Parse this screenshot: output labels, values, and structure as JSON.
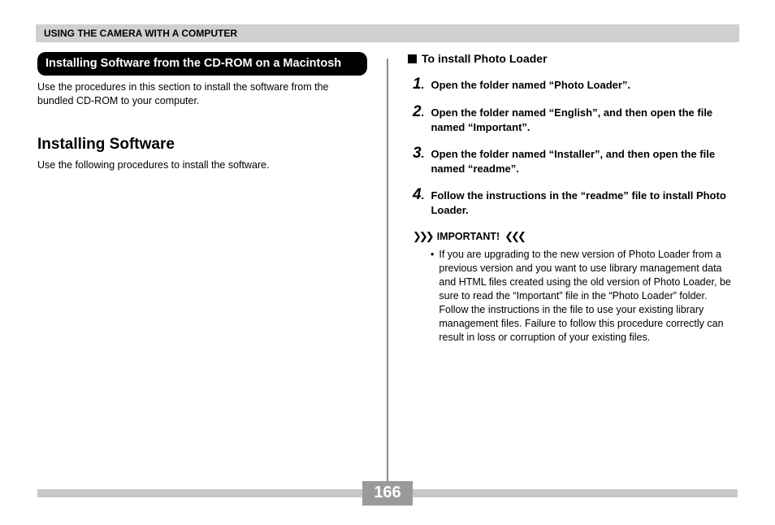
{
  "colors": {
    "header_bg": "#d0d0d0",
    "banner_bg": "#000000",
    "banner_fg": "#ffffff",
    "divider": "#8a8a8a",
    "page_bar_bg": "#c8c8c8",
    "page_num_bg": "#9a9a9a",
    "page_num_fg": "#ffffff",
    "text": "#000000"
  },
  "typography": {
    "body_font": "Arial, Helvetica, sans-serif",
    "body_size_pt": 9,
    "h2_size_pt": 14,
    "step_num_size_pt": 14,
    "step_text_size_pt": 10,
    "page_num_size_pt": 15
  },
  "header": {
    "title": "USING THE CAMERA WITH A COMPUTER"
  },
  "left": {
    "banner": "Installing Software from the CD-ROM on a Macintosh",
    "intro": "Use the procedures in this section to install the software from the bundled CD-ROM to your computer.",
    "heading": "Installing Software",
    "heading_sub": "Use the following procedures to install the software."
  },
  "right": {
    "subheading": "To install Photo Loader",
    "steps": [
      {
        "n": "1",
        "text": "Open the folder named “Photo Loader”."
      },
      {
        "n": "2",
        "text": "Open the folder named “English”, and then open the file named “Important”."
      },
      {
        "n": "3",
        "text": "Open the folder named “Installer”, and then open the file named “readme”."
      },
      {
        "n": "4",
        "text": "Follow the instructions in the “readme” file to install Photo Loader."
      }
    ],
    "important_label": "IMPORTANT!",
    "important_arrows_left": "❯❯❯",
    "important_arrows_right": "❮❮❮",
    "important_bullet": "If you are upgrading to the new version of Photo Loader from a previous version and you want to use library management data and HTML files created using the old version of Photo Loader, be sure to read the “Important” file in the “Photo Loader” folder. Follow the instructions in the file to use your existing library management files. Failure to follow this procedure correctly can result in loss or corruption of your existing files."
  },
  "page_number": "166"
}
